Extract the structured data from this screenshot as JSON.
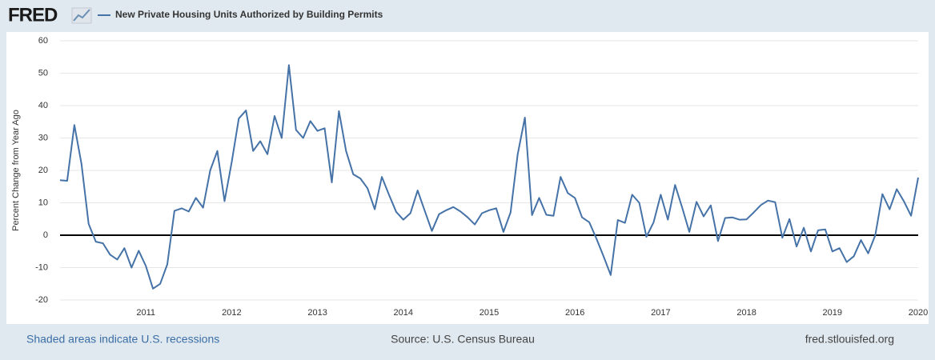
{
  "chart_data": {
    "type": "line",
    "logo": "FRED",
    "title": "New Private Housing Units Authorized by Building Permits",
    "y_label": "Percent Change from Year Ago",
    "footer_left": "Shaded areas indicate U.S. recessions",
    "source": "Source: U.S. Census Bureau",
    "footer_right": "fred.stlouisfed.org",
    "categories": [
      null,
      null,
      null,
      null,
      null,
      null,
      null,
      null,
      null,
      null,
      null,
      null,
      "2011",
      null,
      null,
      null,
      null,
      null,
      null,
      null,
      null,
      null,
      null,
      null,
      "2012",
      null,
      null,
      null,
      null,
      null,
      null,
      null,
      null,
      null,
      null,
      null,
      "2013",
      null,
      null,
      null,
      null,
      null,
      null,
      null,
      null,
      null,
      null,
      null,
      "2014",
      null,
      null,
      null,
      null,
      null,
      null,
      null,
      null,
      null,
      null,
      null,
      "2015",
      null,
      null,
      null,
      null,
      null,
      null,
      null,
      null,
      null,
      null,
      null,
      "2016",
      null,
      null,
      null,
      null,
      null,
      null,
      null,
      null,
      null,
      null,
      null,
      "2017",
      null,
      null,
      null,
      null,
      null,
      null,
      null,
      null,
      null,
      null,
      null,
      "2018",
      null,
      null,
      null,
      null,
      null,
      null,
      null,
      null,
      null,
      null,
      null,
      "2019",
      null,
      null,
      null,
      null,
      null,
      null,
      null,
      null,
      null,
      null,
      null,
      "2020"
    ],
    "series": [
      {
        "name": "New Private Housing Units Authorized by Building Permits",
        "color": "#4572a7",
        "values": [
          17,
          16.8,
          34,
          22,
          3.5,
          -2,
          -2.5,
          -6,
          -7.5,
          -4,
          -10,
          -4.8,
          -9.5,
          -16.5,
          -15,
          -9,
          7.5,
          8.3,
          7.3,
          11.5,
          8.5,
          20,
          26,
          10.5,
          22.5,
          36,
          38.5,
          26,
          29,
          25,
          36.8,
          30,
          52.5,
          32.5,
          30,
          35.2,
          32.2,
          33,
          16.3,
          38.3,
          26,
          18.8,
          17.5,
          14.5,
          8,
          18,
          12.5,
          7.2,
          4.8,
          6.8,
          13.8,
          7.5,
          1.3,
          6.5,
          7.7,
          8.7,
          7.3,
          5.5,
          3.3,
          6.8,
          7.7,
          8.3,
          1,
          7,
          25,
          36.3,
          6.2,
          11.5,
          6.3,
          6,
          18,
          13,
          11.5,
          5.5,
          4,
          -1,
          -6.5,
          -12.3,
          4.7,
          3.8,
          12.5,
          10,
          -0.5,
          4,
          12.5,
          4.8,
          15.5,
          8.5,
          1,
          10.3,
          5.8,
          9.2,
          -1.8,
          5.3,
          5.5,
          4.8,
          4.9,
          7,
          9.3,
          10.7,
          10.2,
          -0.8,
          5,
          -3.5,
          2.3,
          -5,
          1.5,
          1.8,
          -5,
          -4,
          -8.3,
          -6.5,
          -1.5,
          -5.6,
          0,
          12.7,
          8,
          14.2,
          10.5,
          6,
          17.8
        ]
      }
    ],
    "ylim": [
      -20,
      60
    ],
    "yticks": [
      -20,
      -10,
      0,
      10,
      20,
      30,
      40,
      50,
      60
    ],
    "grid": true
  }
}
